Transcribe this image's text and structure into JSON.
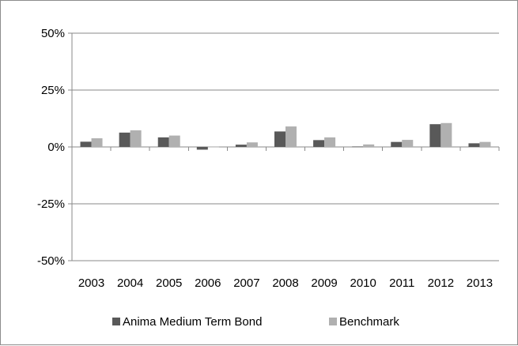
{
  "chart_data": {
    "type": "bar",
    "title": "",
    "xlabel": "",
    "ylabel": "",
    "categories": [
      "2003",
      "2004",
      "2005",
      "2006",
      "2007",
      "2008",
      "2009",
      "2010",
      "2011",
      "2012",
      "2013"
    ],
    "series": [
      {
        "name": "Anima Medium Term Bond",
        "color": "#595959",
        "values": [
          2.3,
          6.3,
          4.2,
          -1.2,
          1.0,
          6.8,
          3.0,
          0.2,
          2.2,
          10.0,
          1.6
        ]
      },
      {
        "name": "Benchmark",
        "color": "#b0b0b0",
        "values": [
          3.8,
          7.3,
          5.0,
          0.1,
          2.0,
          9.0,
          4.2,
          1.1,
          3.1,
          10.5,
          2.2
        ]
      }
    ],
    "ylim": [
      -50,
      50
    ],
    "yticks": [
      -50,
      -25,
      0,
      25,
      50
    ],
    "ytick_labels": [
      "-50%",
      "-25%",
      "0%",
      "25%",
      "50%"
    ],
    "grid": true,
    "legend_position": "bottom"
  }
}
